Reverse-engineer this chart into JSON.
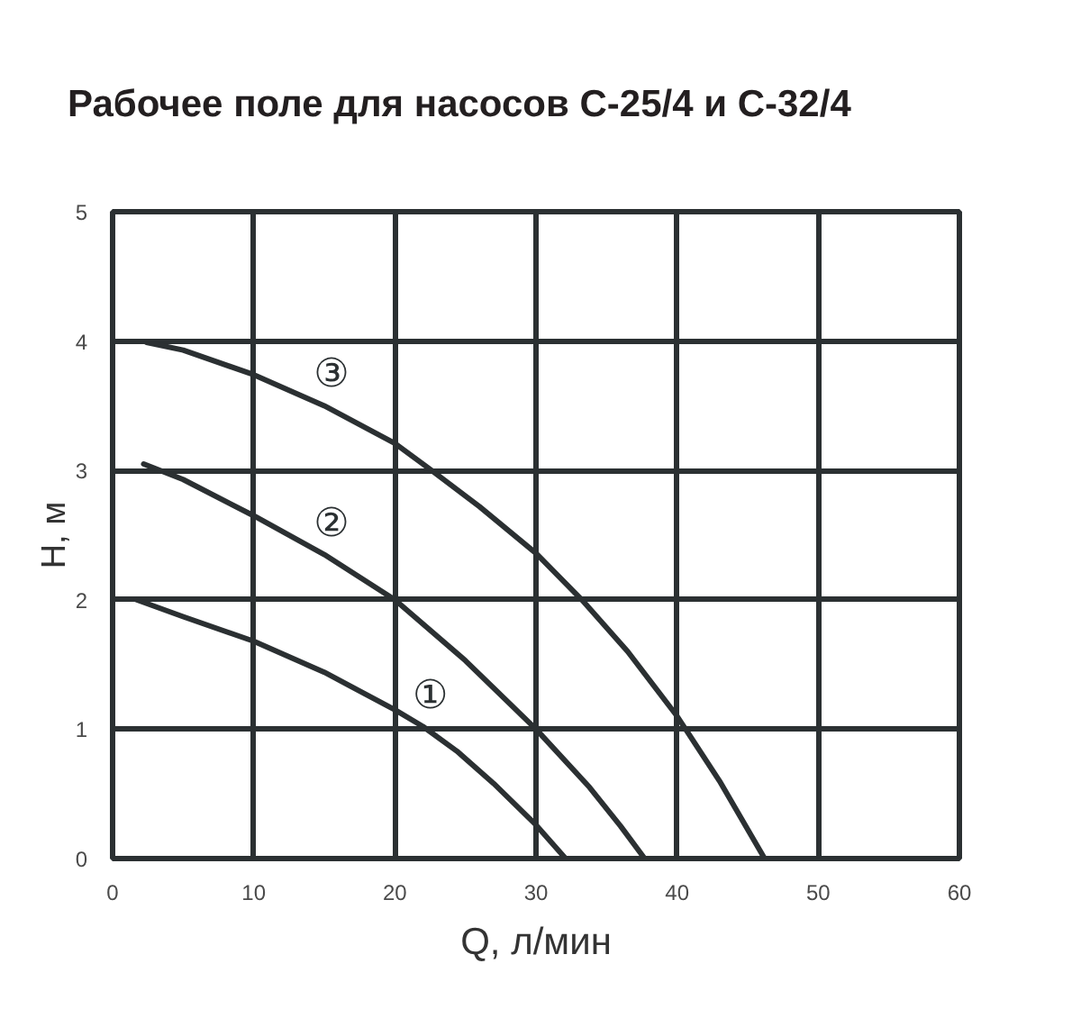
{
  "chart_data": {
    "type": "line",
    "title": "Рабочее поле для насосов С-25/4 и С-32/4",
    "xlabel": "Q, л/мин",
    "ylabel": "H, м",
    "xlim": [
      0,
      60
    ],
    "ylim": [
      0,
      5
    ],
    "xticks": [
      0,
      10,
      20,
      30,
      40,
      50,
      60
    ],
    "yticks": [
      0,
      1,
      2,
      3,
      4,
      5
    ],
    "grid": true,
    "line_style": "solid",
    "series": [
      {
        "name": "①",
        "color": "#2b3032",
        "x": [
          1.7,
          5,
          10,
          15,
          20,
          22,
          24.4,
          27,
          30,
          32.1
        ],
        "values": [
          2.0,
          1.87,
          1.68,
          1.44,
          1.15,
          1.02,
          0.83,
          0.58,
          0.26,
          0
        ]
      },
      {
        "name": "②",
        "color": "#2b3032",
        "x": [
          2.2,
          5,
          10,
          15,
          20,
          25,
          30,
          33.8,
          36,
          37.7
        ],
        "values": [
          3.05,
          2.93,
          2.65,
          2.35,
          2.0,
          1.53,
          1.0,
          0.55,
          0.25,
          0
        ]
      },
      {
        "name": "③",
        "color": "#2b3032",
        "x": [
          2.4,
          5,
          10,
          15,
          20,
          22.6,
          26,
          30,
          33.25,
          36.5,
          40,
          43,
          46.2
        ],
        "values": [
          3.99,
          3.93,
          3.74,
          3.5,
          3.21,
          3.0,
          2.72,
          2.36,
          2.0,
          1.6,
          1.1,
          0.6,
          0
        ]
      }
    ]
  }
}
